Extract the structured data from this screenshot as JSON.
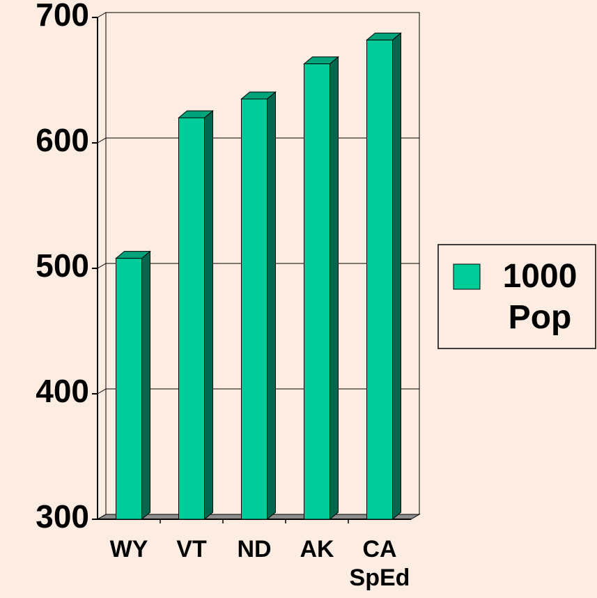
{
  "chart_data": {
    "type": "bar3d",
    "categories": [
      "WY",
      "VT",
      "ND",
      "AK",
      "CA SpEd"
    ],
    "series": [
      {
        "name": "1000 Pop",
        "color": "#00cc99",
        "values": [
          508,
          620,
          635,
          663,
          682
        ]
      }
    ],
    "ylim": [
      300,
      700
    ],
    "yticks": [
      300,
      400,
      500,
      600,
      700
    ],
    "grid": true,
    "legend": "right"
  }
}
